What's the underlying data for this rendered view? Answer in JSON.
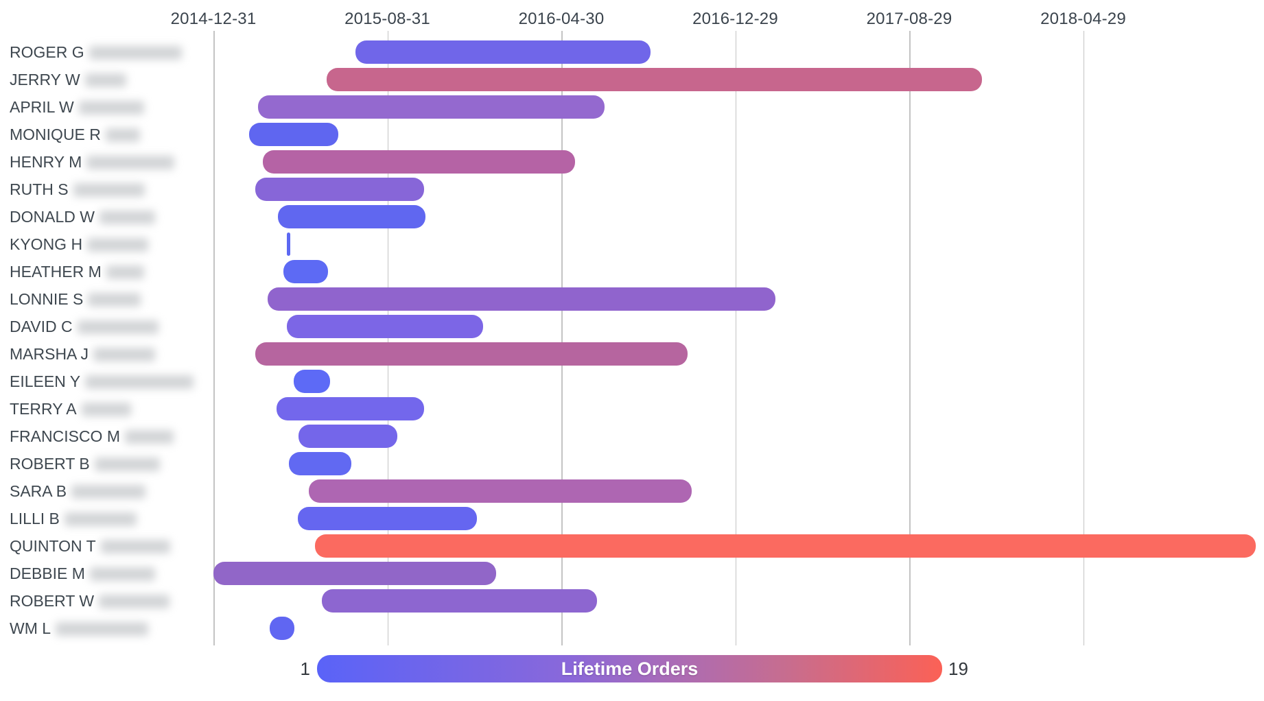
{
  "chart_data": {
    "type": "gantt",
    "x_axis": {
      "epoch": "2014-12-31",
      "tick_interval_days": 243,
      "ticks": [
        "2014-12-31",
        "2015-08-31",
        "2016-04-30",
        "2016-12-29",
        "2017-08-29",
        "2018-04-29"
      ]
    },
    "rows": [
      {
        "name": "ROGER G",
        "redacted_width": 135,
        "start": "2015-07-17",
        "end": "2016-09-02",
        "color": "#7066e9"
      },
      {
        "name": "JERRY W",
        "redacted_width": 60,
        "start": "2015-06-07",
        "end": "2017-12-09",
        "color": "#c7668d"
      },
      {
        "name": "APRIL W",
        "redacted_width": 95,
        "start": "2015-03-03",
        "end": "2016-06-29",
        "color": "#9469cf"
      },
      {
        "name": "MONIQUE R",
        "redacted_width": 50,
        "start": "2015-02-19",
        "end": "2015-06-23",
        "color": "#5f66f0"
      },
      {
        "name": "HENRY M",
        "redacted_width": 128,
        "start": "2015-03-10",
        "end": "2016-05-19",
        "color": "#b563a5"
      },
      {
        "name": "RUTH S",
        "redacted_width": 104,
        "start": "2015-02-27",
        "end": "2015-10-21",
        "color": "#8766d8"
      },
      {
        "name": "DONALD W",
        "redacted_width": 81,
        "start": "2015-03-31",
        "end": "2015-10-23",
        "color": "#6067f0"
      },
      {
        "name": "KYONG H",
        "redacted_width": 89,
        "start": "2015-04-13",
        "end": "2015-04-17",
        "color": "#5c68f2"
      },
      {
        "name": "HEATHER M",
        "redacted_width": 55,
        "start": "2015-04-08",
        "end": "2015-06-09",
        "color": "#5d6af4"
      },
      {
        "name": "LONNIE S",
        "redacted_width": 77,
        "start": "2015-03-17",
        "end": "2017-02-23",
        "color": "#9064cd"
      },
      {
        "name": "DAVID C",
        "redacted_width": 118,
        "start": "2015-04-13",
        "end": "2016-01-12",
        "color": "#7c66e6"
      },
      {
        "name": "MARSHA J",
        "redacted_width": 90,
        "start": "2015-02-27",
        "end": "2016-10-23",
        "color": "#b6659f"
      },
      {
        "name": "EILEEN Y",
        "redacted_width": 158,
        "start": "2015-04-22",
        "end": "2015-06-12",
        "color": "#5d6af6"
      },
      {
        "name": "TERRY A",
        "redacted_width": 72,
        "start": "2015-03-29",
        "end": "2015-10-21",
        "color": "#7367ec"
      },
      {
        "name": "FRANCISCO M",
        "redacted_width": 71,
        "start": "2015-04-29",
        "end": "2015-09-14",
        "color": "#7466ea"
      },
      {
        "name": "ROBERT B",
        "redacted_width": 95,
        "start": "2015-04-15",
        "end": "2015-07-12",
        "color": "#6169f2"
      },
      {
        "name": "SARA B",
        "redacted_width": 108,
        "start": "2015-05-13",
        "end": "2016-10-29",
        "color": "#ae66b2"
      },
      {
        "name": "LILLI B",
        "redacted_width": 105,
        "start": "2015-04-28",
        "end": "2016-01-03",
        "color": "#6566f0"
      },
      {
        "name": "QUINTON T",
        "redacted_width": 101,
        "start": "2015-05-22",
        "end": "2018-12-26",
        "color": "#fb6a60"
      },
      {
        "name": "DEBBIE M",
        "redacted_width": 95,
        "start": "2014-12-31",
        "end": "2016-01-30",
        "color": "#9166c8"
      },
      {
        "name": "ROBERT W",
        "redacted_width": 103,
        "start": "2015-05-31",
        "end": "2016-06-19",
        "color": "#8d66d0"
      },
      {
        "name": "WM L",
        "redacted_width": 135,
        "start": "2015-03-20",
        "end": "2015-04-23",
        "color": "#6066f2"
      }
    ],
    "legend": {
      "title": "Lifetime Orders",
      "min_label": "1",
      "max_label": "19",
      "gradient": [
        "#5a63f8",
        "#8968da",
        "#a76bba",
        "#c76d8f",
        "#fb6156"
      ]
    },
    "colors": {
      "grid": "#c3c3c3",
      "tick_text": "#3a434c",
      "label_text": "#3e474f",
      "legend_text": "#33383d",
      "background": "#ffffff"
    }
  }
}
